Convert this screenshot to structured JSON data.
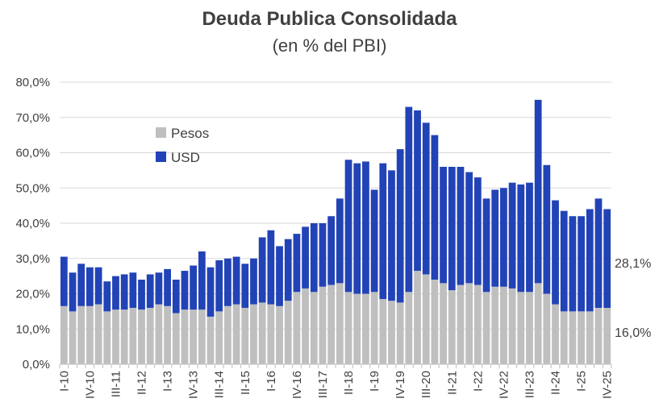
{
  "chart_data": {
    "type": "bar",
    "stacked": true,
    "title": "Deuda Publica Consolidada",
    "subtitle": "(en % del PBI)",
    "xlabel": "",
    "ylabel": "",
    "ylim": [
      0,
      80
    ],
    "yticks": [
      "0,0%",
      "10,0%",
      "20,0%",
      "30,0%",
      "40,0%",
      "50,0%",
      "60,0%",
      "70,0%",
      "80,0%"
    ],
    "grid": true,
    "legend_position": "upper-left inside plot",
    "x_tick_labels": [
      "I-10",
      "IV-10",
      "III-11",
      "II-12",
      "I-13",
      "IV-13",
      "III-14",
      "II-15",
      "I-16",
      "IV-16",
      "III-17",
      "II-18",
      "I-19",
      "IV-19",
      "III-20",
      "II-21",
      "I-22",
      "IV-22",
      "III-23",
      "II-24",
      "I-25",
      "IV-25"
    ],
    "categories": [
      "I-10",
      "II-10",
      "III-10",
      "IV-10",
      "I-11",
      "II-11",
      "III-11",
      "IV-11",
      "I-12",
      "II-12",
      "III-12",
      "IV-12",
      "I-13",
      "II-13",
      "III-13",
      "IV-13",
      "I-14",
      "II-14",
      "III-14",
      "IV-14",
      "I-15",
      "II-15",
      "III-15",
      "IV-15",
      "I-16",
      "II-16",
      "III-16",
      "IV-16",
      "I-17",
      "II-17",
      "III-17",
      "IV-17",
      "I-18",
      "II-18",
      "III-18",
      "IV-18",
      "I-19",
      "II-19",
      "III-19",
      "IV-19",
      "I-20",
      "II-20",
      "III-20",
      "IV-20",
      "I-21",
      "II-21",
      "III-21",
      "IV-21",
      "I-22",
      "II-22",
      "III-22",
      "IV-22",
      "I-23",
      "II-23",
      "III-23",
      "IV-23",
      "I-24",
      "II-24",
      "III-24",
      "IV-24",
      "I-25",
      "II-25",
      "III-25",
      "IV-25"
    ],
    "series": [
      {
        "name": "Pesos",
        "color": "#bfbfbf",
        "values": [
          16.5,
          15,
          16.5,
          16.5,
          17,
          15,
          15.5,
          15.5,
          16,
          15.5,
          16,
          17,
          16.5,
          14.5,
          15.5,
          15.5,
          15.5,
          13.5,
          15,
          16.5,
          17,
          16,
          17,
          17.5,
          17,
          16.5,
          18,
          20.5,
          21.5,
          20.5,
          22,
          22.5,
          23,
          20.5,
          20,
          20,
          20.5,
          18.5,
          18,
          17.5,
          20.5,
          26.5,
          25.5,
          24,
          23,
          21,
          22.5,
          23,
          22.5,
          20.5,
          22,
          22,
          21.5,
          20.5,
          20.5,
          23,
          20,
          17,
          15,
          15,
          15,
          15,
          16,
          16
        ]
      },
      {
        "name": "USD",
        "color": "#2243b6",
        "values": [
          14,
          11,
          12,
          11,
          10.5,
          8.5,
          9.5,
          10,
          10,
          8.5,
          9.5,
          9,
          10.5,
          9.5,
          11,
          12.5,
          16.5,
          14,
          14.5,
          13.5,
          13.5,
          12.5,
          13,
          18.5,
          21,
          17,
          17.5,
          16.5,
          17.5,
          19.5,
          18,
          19.5,
          24,
          37.5,
          37,
          37.5,
          29,
          38.5,
          37,
          43.5,
          52.5,
          45.5,
          43,
          41,
          33,
          35,
          33.5,
          31.5,
          30.5,
          26.5,
          27.5,
          28,
          30,
          30.5,
          31,
          52,
          36.5,
          29.5,
          28.5,
          27,
          27,
          29,
          31,
          28
        ]
      }
    ],
    "annotations": {
      "usd_last": "28,1%",
      "pesos_last": "16,0%"
    }
  }
}
